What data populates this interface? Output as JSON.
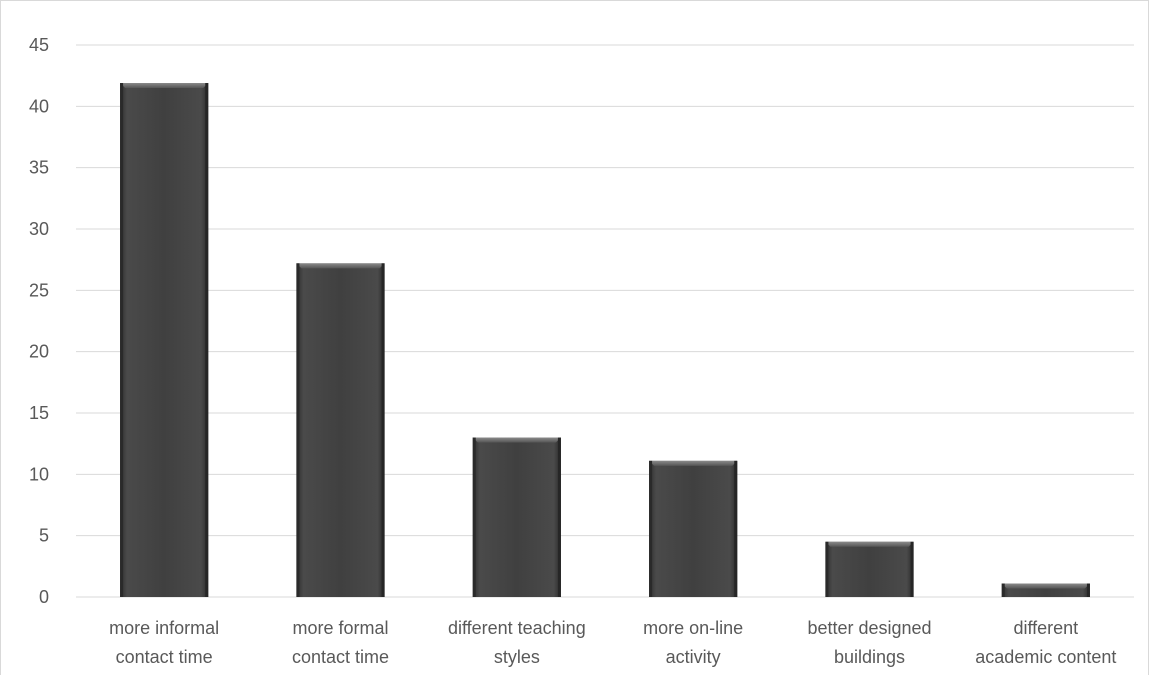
{
  "chart_data": {
    "type": "bar",
    "title": "",
    "xlabel": "",
    "ylabel": "",
    "categories": [
      [
        "more informal",
        "contact time"
      ],
      [
        "more formal",
        "contact time"
      ],
      [
        "different teaching",
        "styles"
      ],
      [
        "more on-line",
        "activity"
      ],
      [
        "better designed",
        "buildings"
      ],
      [
        "different",
        "academic content"
      ]
    ],
    "values": [
      41.9,
      27.2,
      13,
      11.1,
      4.5,
      1.1
    ],
    "ylim": [
      0,
      45
    ],
    "yticks": [
      0,
      5,
      10,
      15,
      20,
      25,
      30,
      35,
      40,
      45
    ],
    "grid": true,
    "legend": "none",
    "colors": {
      "bar_fill": "#404040",
      "bar_edge_light": "#7f7f7f",
      "gridline": "#d9d9d9",
      "axis_text": "#595959"
    }
  }
}
